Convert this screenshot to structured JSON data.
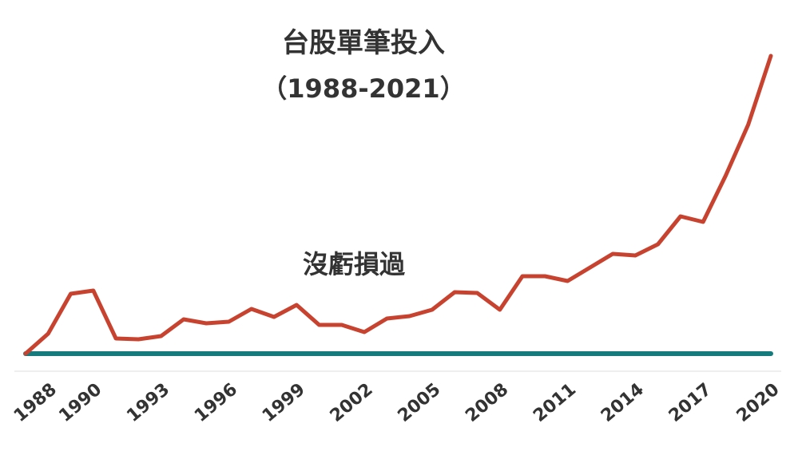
{
  "chart_data": {
    "type": "line",
    "title": "台股單筆投入",
    "subtitle": "（1988-2021）",
    "annotation": "沒虧損過",
    "x": [
      1988,
      1989,
      1990,
      1991,
      1992,
      1993,
      1994,
      1995,
      1996,
      1997,
      1998,
      1999,
      2000,
      2001,
      2002,
      2003,
      2004,
      2005,
      2006,
      2007,
      2008,
      2009,
      2010,
      2011,
      2012,
      2013,
      2014,
      2015,
      2016,
      2017,
      2018,
      2019,
      2020,
      2021
    ],
    "series": [
      {
        "color": "#c8432f",
        "values": [
          0,
          25,
          75,
          79,
          19,
          18,
          22,
          43,
          38,
          40,
          56,
          46,
          61,
          36,
          36,
          27,
          44,
          47,
          55,
          77,
          76,
          55,
          97,
          97,
          91,
          108,
          125,
          123,
          137,
          172,
          165,
          223,
          287,
          373
        ]
      }
    ],
    "baseline": {
      "value": 0,
      "color": "#167b7c"
    },
    "xlim": [
      1988,
      2021
    ],
    "xticks": [
      1988,
      1990,
      1993,
      1996,
      1999,
      2002,
      2005,
      2008,
      2011,
      2014,
      2017,
      2020
    ],
    "ylim": [
      -22,
      400
    ]
  }
}
